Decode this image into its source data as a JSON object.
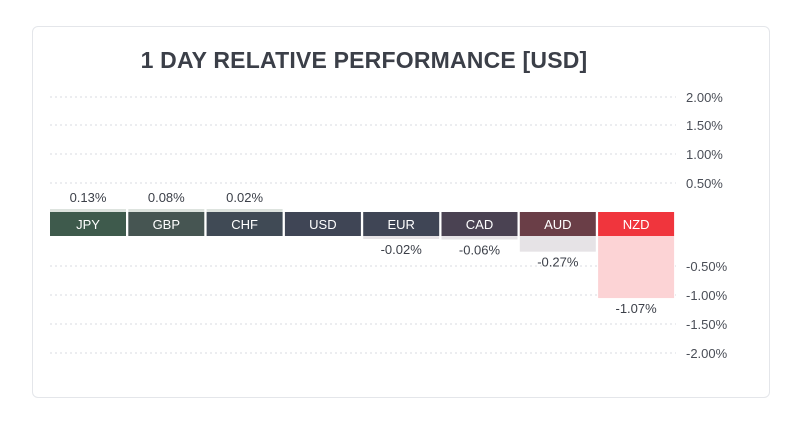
{
  "chart_data": {
    "type": "bar",
    "title": "1 DAY RELATIVE PERFORMANCE  [USD]",
    "categories": [
      "JPY",
      "GBP",
      "CHF",
      "USD",
      "EUR",
      "CAD",
      "AUD",
      "NZD"
    ],
    "values": [
      0.13,
      0.08,
      0.02,
      0,
      -0.02,
      -0.06,
      -0.27,
      -1.07
    ],
    "value_labels": [
      "0.13%",
      "0.08%",
      "0.02%",
      "",
      "-0.02%",
      "-0.06%",
      "-0.27%",
      "-1.07%"
    ],
    "yticks_positive": [
      "2.00%",
      "1.50%",
      "1.00%",
      "0.50%"
    ],
    "yticks_negative": [
      "-0.50%",
      "-1.00%",
      "-1.50%",
      "-2.00%"
    ],
    "ylim": [
      -2,
      2
    ],
    "grid": true,
    "colors": {
      "label_bars": [
        "#3e5a4c",
        "#465552",
        "#404a55",
        "#3f4555",
        "#3f4555",
        "#4a4252",
        "#6a3e47",
        "#f0353d"
      ],
      "positive_bar": "#dde3de",
      "negative_bar": "#e6e3e6",
      "negative_bar_strong": "#fcd3d5"
    }
  }
}
